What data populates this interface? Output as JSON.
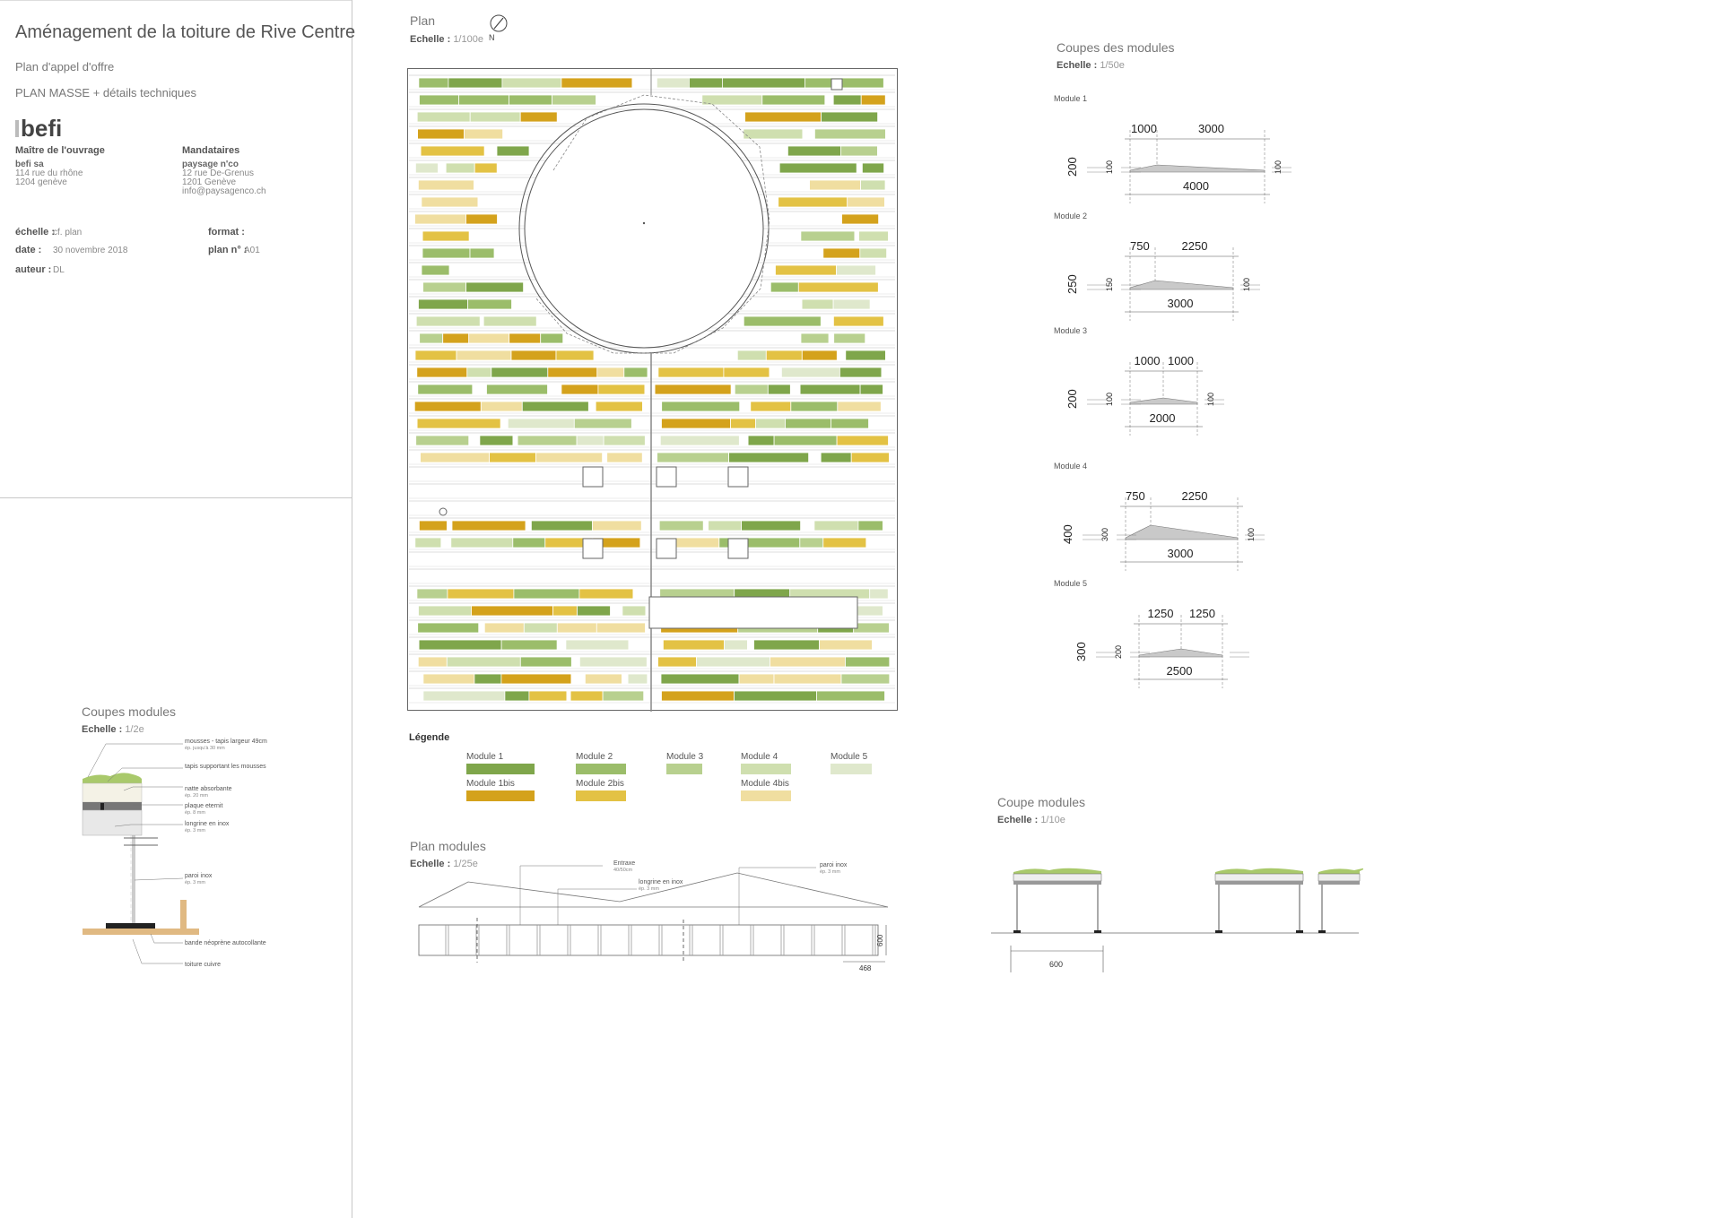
{
  "title_block": {
    "project": "Aménagement de la toiture de Rive Centre",
    "doc_type": "Plan d'appel d'offre",
    "doc_subject": "PLAN MASSE + détails techniques",
    "logo": "befi",
    "client_label": "Maître de l'ouvrage",
    "client_lines": [
      "befi sa",
      "114 rue du rhône",
      "1204 genève"
    ],
    "agents_label": "Mandataires",
    "agents_lines": [
      "paysage n'co",
      "12 rue De-Grenus",
      "1201 Genève",
      "info@paysagenco.ch"
    ],
    "scale_label": "échelle :",
    "scale_value": "cf. plan",
    "date_label": "date :",
    "date_value": "30 novembre 2018",
    "author_label": "auteur :",
    "author_value": "DL",
    "format_label": "format :",
    "format_value": "",
    "plan_no_label": "plan n° :",
    "plan_no_value": "A01"
  },
  "plan": {
    "title": "Plan",
    "scale_label": "Echelle :",
    "scale_value": "1/100e",
    "north": "N"
  },
  "legend": {
    "title": "Légende",
    "items": [
      {
        "label": "Module 1",
        "color": "#7fa64b"
      },
      {
        "label": "Module 2",
        "color": "#9bbd6a"
      },
      {
        "label": "Module 3",
        "color": "#b8d08f"
      },
      {
        "label": "Module 4",
        "color": "#cfdfaf"
      },
      {
        "label": "Module 5",
        "color": "#dfe8cc"
      },
      {
        "label": "Module 1bis",
        "color": "#d4a21c"
      },
      {
        "label": "Module 2bis",
        "color": "#e3c244"
      },
      {
        "label": "Module 4bis",
        "color": "#f0dea0"
      }
    ]
  },
  "coupes_des_modules": {
    "title": "Coupes des modules",
    "scale_label": "Echelle :",
    "scale_value": "1/50e",
    "modules": [
      {
        "name": "Module 1",
        "left_dim": "1000",
        "right_dim": "3000",
        "total": "4000",
        "height": "200",
        "h_left": "100",
        "h_right": "100"
      },
      {
        "name": "Module 2",
        "left_dim": "750",
        "right_dim": "2250",
        "total": "3000",
        "height": "250",
        "h_left": "150",
        "h_right": "100"
      },
      {
        "name": "Module 3",
        "left_dim": "1000",
        "right_dim": "1000",
        "total": "2000",
        "height": "200",
        "h_left": "100",
        "h_right": "100"
      },
      {
        "name": "Module 4",
        "left_dim": "750",
        "right_dim": "2250",
        "total": "3000",
        "height": "400",
        "h_left": "300",
        "h_right": "100"
      },
      {
        "name": "Module 5",
        "left_dim": "1250",
        "right_dim": "1250",
        "total": "2500",
        "height": "300",
        "h_left": "200",
        "h_right": ""
      }
    ]
  },
  "coupes_modules_detail": {
    "title": "Coupes modules",
    "scale_label": "Echelle :",
    "scale_value": "1/2e",
    "labels": [
      {
        "main": "mousses - tapis largeur 49cm",
        "sub": "ép. jusqu'à 30 mm"
      },
      {
        "main": "tapis supportant les mousses",
        "sub": ""
      },
      {
        "main": "natte absorbante",
        "sub": "ép. 20 mm"
      },
      {
        "main": "plaque eternit",
        "sub": "ép. 8 mm"
      },
      {
        "main": "longrine en inox",
        "sub": "ép. 3 mm"
      },
      {
        "main": "paroi inox",
        "sub": "ép. 3 mm"
      },
      {
        "main": "bande néoprène autocollante",
        "sub": ""
      },
      {
        "main": "toiture cuivre",
        "sub": ""
      }
    ]
  },
  "plan_modules": {
    "title": "Plan modules",
    "scale_label": "Echelle :",
    "scale_value": "1/25e",
    "labels": [
      {
        "main": "Entraxe",
        "sub": "40/50cm"
      },
      {
        "main": "longrine en inox",
        "sub": "ép. 3 mm"
      },
      {
        "main": "paroi inox",
        "sub": "ép. 3 mm"
      }
    ],
    "dim_height": "600",
    "dim_width": "468"
  },
  "coupe_modules": {
    "title": "Coupe modules",
    "scale_label": "Echelle :",
    "scale_value": "1/10e",
    "dim": "600"
  }
}
